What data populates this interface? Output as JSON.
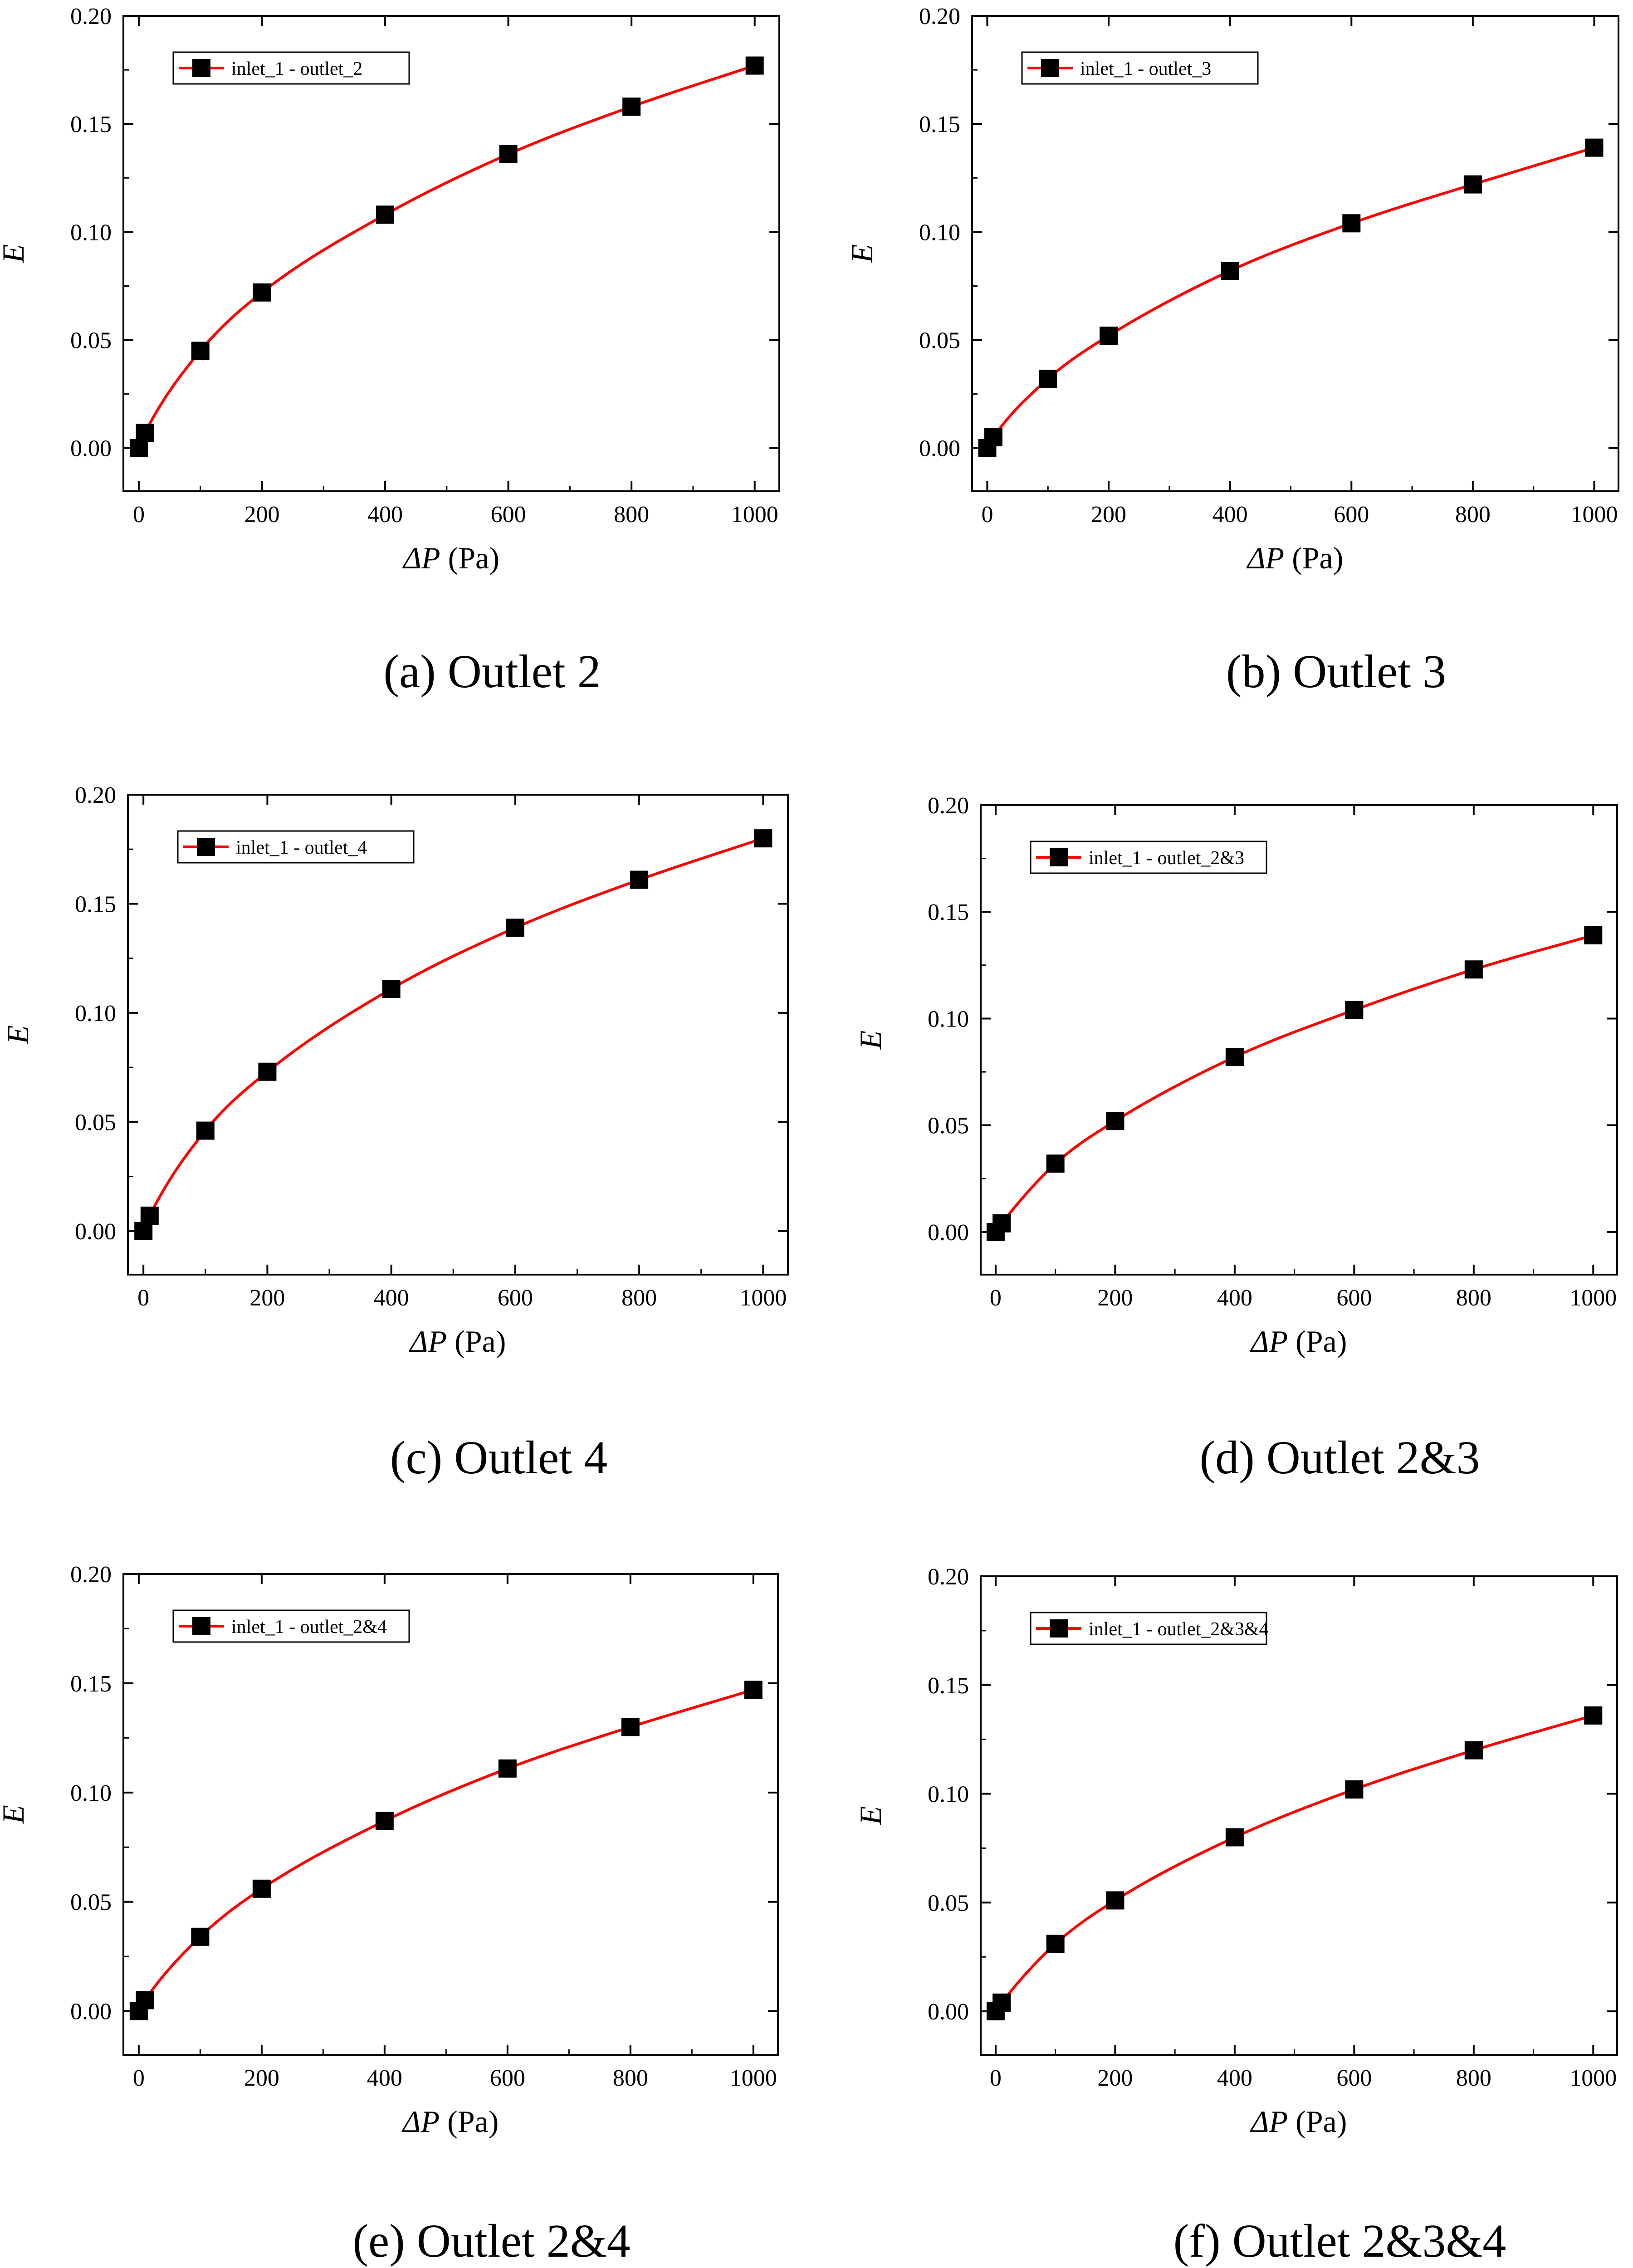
{
  "colors": {
    "line": "#ff0000",
    "marker": "#000000",
    "axis": "#000000"
  },
  "chart_data": [
    {
      "type": "line",
      "caption": "(a) Outlet 2",
      "legend": "inlet_1 - outlet_2",
      "xlabel_symbol": "ΔP",
      "xlabel_unit": " (Pa)",
      "ylabel": "E",
      "xlim": [
        -25,
        1040
      ],
      "ylim": [
        -0.02,
        0.2
      ],
      "xticks": [
        0,
        200,
        400,
        600,
        800,
        1000
      ],
      "xtick_labels": [
        "0",
        "200",
        "400",
        "600",
        "800",
        "1000"
      ],
      "yticks": [
        0,
        0.05,
        0.1,
        0.15,
        0.2
      ],
      "ytick_labels": [
        "0.00",
        "0.05",
        "0.10",
        "0.15",
        "0.20"
      ],
      "x": [
        0,
        10,
        100,
        200,
        400,
        600,
        800,
        1000
      ],
      "y": [
        0.0,
        0.007,
        0.045,
        0.072,
        0.108,
        0.136,
        0.158,
        0.177
      ]
    },
    {
      "type": "line",
      "caption": "(b) Outlet 3",
      "legend": "inlet_1 - outlet_3",
      "xlabel_symbol": "ΔP",
      "xlabel_unit": " (Pa)",
      "ylabel": "E",
      "xlim": [
        -25,
        1040
      ],
      "ylim": [
        -0.02,
        0.2
      ],
      "xticks": [
        0,
        200,
        400,
        600,
        800,
        1000
      ],
      "xtick_labels": [
        "0",
        "200",
        "400",
        "600",
        "800",
        "1000"
      ],
      "yticks": [
        0,
        0.05,
        0.1,
        0.15,
        0.2
      ],
      "ytick_labels": [
        "0.00",
        "0.05",
        "0.10",
        "0.15",
        "0.20"
      ],
      "x": [
        0,
        10,
        100,
        200,
        400,
        600,
        800,
        1000
      ],
      "y": [
        0.0,
        0.005,
        0.032,
        0.052,
        0.082,
        0.104,
        0.122,
        0.139
      ]
    },
    {
      "type": "line",
      "caption": "(c) Outlet 4",
      "legend": "inlet_1 - outlet_4",
      "xlabel_symbol": "ΔP",
      "xlabel_unit": " (Pa)",
      "ylabel": "E",
      "xlim": [
        -25,
        1040
      ],
      "ylim": [
        -0.02,
        0.2
      ],
      "xticks": [
        0,
        200,
        400,
        600,
        800,
        1000
      ],
      "xtick_labels": [
        "0",
        "200",
        "400",
        "600",
        "800",
        "1000"
      ],
      "yticks": [
        0,
        0.05,
        0.1,
        0.15,
        0.2
      ],
      "ytick_labels": [
        "0.00",
        "0.05",
        "0.10",
        "0.15",
        "0.20"
      ],
      "x": [
        0,
        10,
        100,
        200,
        400,
        600,
        800,
        1000
      ],
      "y": [
        0.0,
        0.007,
        0.046,
        0.073,
        0.111,
        0.139,
        0.161,
        0.18
      ]
    },
    {
      "type": "line",
      "caption": "(d) Outlet 2&3",
      "legend": "inlet_1 - outlet_2&3",
      "xlabel_symbol": "ΔP",
      "xlabel_unit": " (Pa)",
      "ylabel": "E",
      "xlim": [
        -25,
        1040
      ],
      "ylim": [
        -0.02,
        0.2
      ],
      "xticks": [
        0,
        200,
        400,
        600,
        800,
        1000
      ],
      "xtick_labels": [
        "0",
        "200",
        "400",
        "600",
        "800",
        "1000"
      ],
      "yticks": [
        0,
        0.05,
        0.1,
        0.15,
        0.2
      ],
      "ytick_labels": [
        "0.00",
        "0.05",
        "0.10",
        "0.15",
        "0.20"
      ],
      "x": [
        0,
        10,
        100,
        200,
        400,
        600,
        800,
        1000
      ],
      "y": [
        0.0,
        0.004,
        0.032,
        0.052,
        0.082,
        0.104,
        0.123,
        0.139
      ]
    },
    {
      "type": "line",
      "caption": "(e) Outlet 2&4",
      "legend": "inlet_1 - outlet_2&4",
      "xlabel_symbol": "ΔP",
      "xlabel_unit": " (Pa)",
      "ylabel": "E",
      "xlim": [
        -25,
        1040
      ],
      "ylim": [
        -0.02,
        0.2
      ],
      "xticks": [
        0,
        200,
        400,
        600,
        800,
        1000
      ],
      "xtick_labels": [
        "0",
        "200",
        "400",
        "600",
        "800",
        "1000"
      ],
      "yticks": [
        0,
        0.05,
        0.1,
        0.15,
        0.2
      ],
      "ytick_labels": [
        "0.00",
        "0.05",
        "0.10",
        "0.15",
        "0.20"
      ],
      "x": [
        0,
        10,
        100,
        200,
        400,
        600,
        800,
        1000
      ],
      "y": [
        0.0,
        0.005,
        0.034,
        0.056,
        0.087,
        0.111,
        0.13,
        0.147
      ]
    },
    {
      "type": "line",
      "caption": "(f) Outlet 2&3&4",
      "legend": "inlet_1 - outlet_2&3&4",
      "xlabel_symbol": "ΔP",
      "xlabel_unit": " (Pa)",
      "ylabel": "E",
      "xlim": [
        -25,
        1040
      ],
      "ylim": [
        -0.02,
        0.2
      ],
      "xticks": [
        0,
        200,
        400,
        600,
        800,
        1000
      ],
      "xtick_labels": [
        "0",
        "200",
        "400",
        "600",
        "800",
        "1000"
      ],
      "yticks": [
        0,
        0.05,
        0.1,
        0.15,
        0.2
      ],
      "ytick_labels": [
        "0.00",
        "0.05",
        "0.10",
        "0.15",
        "0.20"
      ],
      "x": [
        0,
        10,
        100,
        200,
        400,
        600,
        800,
        1000
      ],
      "y": [
        0.0,
        0.004,
        0.031,
        0.051,
        0.08,
        0.102,
        0.12,
        0.136
      ]
    }
  ]
}
